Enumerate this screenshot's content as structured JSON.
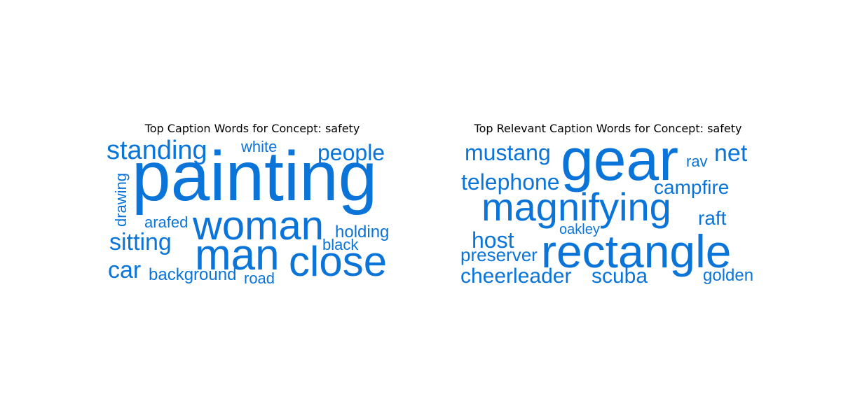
{
  "panels": {
    "left": {
      "title": "Top Caption Words for Concept: safety",
      "words": [
        "painting",
        "woman",
        "man",
        "close",
        "standing",
        "people",
        "white",
        "drawing",
        "arafed",
        "holding",
        "sitting",
        "black",
        "car",
        "background",
        "road"
      ]
    },
    "right": {
      "title": "Top Relevant Caption Words for Concept: safety",
      "words": [
        "gear",
        "magnifying",
        "rectangle",
        "mustang",
        "net",
        "rav",
        "telephone",
        "campfire",
        "raft",
        "host",
        "oakley",
        "preserver",
        "cheerleader",
        "scuba",
        "golden"
      ]
    }
  },
  "colors": {
    "word": "#0a74d9",
    "title": "#000000",
    "background": "#ffffff"
  }
}
